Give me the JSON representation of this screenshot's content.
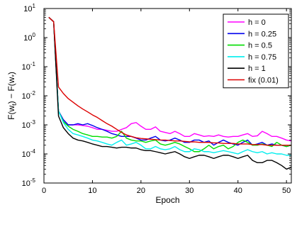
{
  "chart_data": {
    "type": "line",
    "title": "",
    "xlabel": "Epoch",
    "ylabel_main": "F(w",
    "ylabel_sub1": "t",
    "ylabel_mid": ") − F(w",
    "ylabel_sub2": "*",
    "ylabel_end": ")",
    "xlim": [
      0,
      51
    ],
    "ylim": [
      1e-05,
      10
    ],
    "yscale": "log",
    "xticks": [
      0,
      10,
      20,
      30,
      40,
      50
    ],
    "xtick_labels": [
      "0",
      "10",
      "20",
      "30",
      "40",
      "50"
    ],
    "yticks_exp": [
      -5,
      -4,
      -3,
      -2,
      -1,
      0,
      1
    ],
    "ytick_base": "10",
    "ytick_exp_labels": [
      "-5",
      "-4",
      "-3",
      "-2",
      "-1",
      "0",
      "1"
    ],
    "legend_position": "top-right",
    "grid": false,
    "series": [
      {
        "name": "h = 0",
        "color": "#ff00ff",
        "x": [
          1,
          2,
          3,
          4,
          5,
          6,
          7,
          8,
          9,
          10,
          11,
          12,
          13,
          14,
          15,
          16,
          17,
          18,
          19,
          20,
          21,
          22,
          23,
          24,
          25,
          26,
          27,
          28,
          29,
          30,
          31,
          32,
          33,
          34,
          35,
          36,
          37,
          38,
          39,
          40,
          41,
          42,
          43,
          44,
          45,
          46,
          47,
          48,
          49,
          50,
          51
        ],
        "y": [
          5,
          3.5,
          0.003,
          0.0015,
          0.001,
          0.001,
          0.001,
          0.00095,
          0.0009,
          0.0008,
          0.0007,
          0.0007,
          0.00065,
          0.0006,
          0.0006,
          0.0007,
          0.0008,
          0.0011,
          0.0012,
          0.0009,
          0.0007,
          0.0007,
          0.00085,
          0.0006,
          0.00055,
          0.0005,
          0.0006,
          0.0005,
          0.0004,
          0.0004,
          0.0005,
          0.00045,
          0.0004,
          0.00042,
          0.0004,
          0.00045,
          0.0004,
          0.00038,
          0.0004,
          0.0004,
          0.00045,
          0.0005,
          0.0004,
          0.00042,
          0.0006,
          0.0005,
          0.0004,
          0.0004,
          0.00035,
          0.0003,
          0.00028
        ]
      },
      {
        "name": "h = 0.25",
        "color": "#0000ee",
        "x": [
          1,
          2,
          3,
          4,
          5,
          6,
          7,
          8,
          9,
          10,
          11,
          12,
          13,
          14,
          15,
          16,
          17,
          18,
          19,
          20,
          21,
          22,
          23,
          24,
          25,
          26,
          27,
          28,
          29,
          30,
          31,
          32,
          33,
          34,
          35,
          36,
          37,
          38,
          39,
          40,
          41,
          42,
          43,
          44,
          45,
          46,
          47,
          48,
          49,
          50,
          51
        ],
        "y": [
          5,
          3.5,
          0.003,
          0.0015,
          0.001,
          0.001,
          0.0011,
          0.001,
          0.0011,
          0.00095,
          0.0008,
          0.0007,
          0.0006,
          0.0005,
          0.00045,
          0.0004,
          0.0004,
          0.0004,
          0.00035,
          0.0003,
          0.0003,
          0.00035,
          0.0004,
          0.0003,
          0.00028,
          0.0003,
          0.00035,
          0.0003,
          0.00025,
          0.00025,
          0.0003,
          0.0003,
          0.00025,
          0.00028,
          0.0002,
          0.00025,
          0.0003,
          0.00025,
          0.00022,
          0.0002,
          0.00025,
          0.0003,
          0.0002,
          0.00022,
          0.00025,
          0.0002,
          0.00022,
          0.0002,
          0.0002,
          0.00018,
          0.0002
        ]
      },
      {
        "name": "h = 0.5",
        "color": "#00dd00",
        "x": [
          1,
          2,
          3,
          4,
          5,
          6,
          7,
          8,
          9,
          10,
          11,
          12,
          13,
          14,
          15,
          16,
          17,
          18,
          19,
          20,
          21,
          22,
          23,
          24,
          25,
          26,
          27,
          28,
          29,
          30,
          31,
          32,
          33,
          34,
          35,
          36,
          37,
          38,
          39,
          40,
          41,
          42,
          43,
          44,
          45,
          46,
          47,
          48,
          49,
          50,
          51
        ],
        "y": [
          5,
          3.5,
          0.003,
          0.0013,
          0.0009,
          0.0007,
          0.0006,
          0.0005,
          0.00045,
          0.0004,
          0.0004,
          0.00038,
          0.00038,
          0.00035,
          0.0004,
          0.0006,
          0.00035,
          0.0003,
          0.00028,
          0.00028,
          0.00025,
          0.00028,
          0.0003,
          0.00022,
          0.0002,
          0.00022,
          0.00025,
          0.00022,
          0.00018,
          0.00015,
          0.00012,
          0.00012,
          0.00015,
          0.0002,
          0.00015,
          0.00018,
          0.0002,
          0.00015,
          0.00018,
          0.00025,
          0.0003,
          0.00025,
          0.0002,
          0.0002,
          0.00022,
          0.0002,
          0.00018,
          0.00025,
          0.0002,
          0.00018,
          0.0002
        ]
      },
      {
        "name": "h = 0.75",
        "color": "#00eeee",
        "x": [
          1,
          2,
          3,
          4,
          5,
          6,
          7,
          8,
          9,
          10,
          11,
          12,
          13,
          14,
          15,
          16,
          17,
          18,
          19,
          20,
          21,
          22,
          23,
          24,
          25,
          26,
          27,
          28,
          29,
          30,
          31,
          32,
          33,
          34,
          35,
          36,
          37,
          38,
          39,
          40,
          41,
          42,
          43,
          44,
          45,
          46,
          47,
          48,
          49,
          50,
          51
        ],
        "y": [
          5,
          3.5,
          0.003,
          0.0012,
          0.0007,
          0.0005,
          0.00045,
          0.0004,
          0.00035,
          0.0003,
          0.00028,
          0.00025,
          0.00022,
          0.0002,
          0.00025,
          0.0003,
          0.0002,
          0.00022,
          0.00025,
          0.0002,
          0.00015,
          0.00015,
          0.00018,
          0.00015,
          0.00014,
          0.00015,
          0.00018,
          0.00014,
          0.00012,
          0.00012,
          0.00015,
          0.00014,
          0.00012,
          0.00012,
          0.00011,
          0.00012,
          0.00013,
          0.00012,
          0.00011,
          0.0001,
          0.00012,
          0.00014,
          0.00012,
          0.00011,
          0.00012,
          0.0001,
          0.00011,
          0.0001,
          0.0001,
          9e-05,
          9e-05
        ]
      },
      {
        "name": "h = 1",
        "color": "#000000",
        "x": [
          1,
          2,
          3,
          4,
          5,
          6,
          7,
          8,
          9,
          10,
          11,
          12,
          13,
          14,
          15,
          16,
          17,
          18,
          19,
          20,
          21,
          22,
          23,
          24,
          25,
          26,
          27,
          28,
          29,
          30,
          31,
          32,
          33,
          34,
          35,
          36,
          37,
          38,
          39,
          40,
          41,
          42,
          43,
          44,
          45,
          46,
          47,
          48,
          49,
          50,
          51
        ],
        "y": [
          5,
          3.5,
          0.002,
          0.0008,
          0.0005,
          0.00035,
          0.0003,
          0.00028,
          0.00025,
          0.00022,
          0.0002,
          0.00018,
          0.00018,
          0.00017,
          0.00016,
          0.00017,
          0.00017,
          0.00016,
          0.00016,
          0.00014,
          0.00013,
          0.00013,
          0.00012,
          0.00011,
          0.0001,
          0.00011,
          0.00012,
          0.0001,
          8e-05,
          7e-05,
          8e-05,
          9e-05,
          9e-05,
          8e-05,
          7e-05,
          8e-05,
          9e-05,
          9e-05,
          8e-05,
          7e-05,
          8e-05,
          9e-05,
          6e-05,
          5e-05,
          5e-05,
          6e-05,
          6e-05,
          5e-05,
          4e-05,
          3e-05,
          3.5e-05
        ]
      },
      {
        "name": "fix (0.01)",
        "color": "#dd0000",
        "x": [
          1,
          2,
          3,
          4,
          5,
          6,
          7,
          8,
          9,
          10,
          11,
          12,
          13,
          14,
          15,
          16,
          17,
          18,
          19,
          20,
          21,
          22,
          23,
          24,
          25,
          26,
          27,
          28,
          29,
          30,
          31,
          32,
          33,
          34,
          35,
          36,
          37,
          38,
          39,
          40,
          41,
          42,
          43,
          44,
          45,
          46,
          47,
          48,
          49,
          50,
          51
        ],
        "y": [
          5,
          3.5,
          0.02,
          0.012,
          0.008,
          0.006,
          0.0045,
          0.0035,
          0.0028,
          0.0022,
          0.0018,
          0.0014,
          0.0011,
          0.0009,
          0.0007,
          0.00055,
          0.00045,
          0.0004,
          0.00036,
          0.00034,
          0.00033,
          0.00032,
          0.00031,
          0.0003,
          0.0003,
          0.00029,
          0.00028,
          0.00028,
          0.00027,
          0.00026,
          0.00026,
          0.00025,
          0.00025,
          0.00025,
          0.00024,
          0.00024,
          0.00023,
          0.00023,
          0.00023,
          0.00022,
          0.00022,
          0.00022,
          0.00021,
          0.00021,
          0.00021,
          0.0002,
          0.0002,
          0.0002,
          0.0002,
          0.0002,
          0.0002
        ]
      }
    ]
  }
}
